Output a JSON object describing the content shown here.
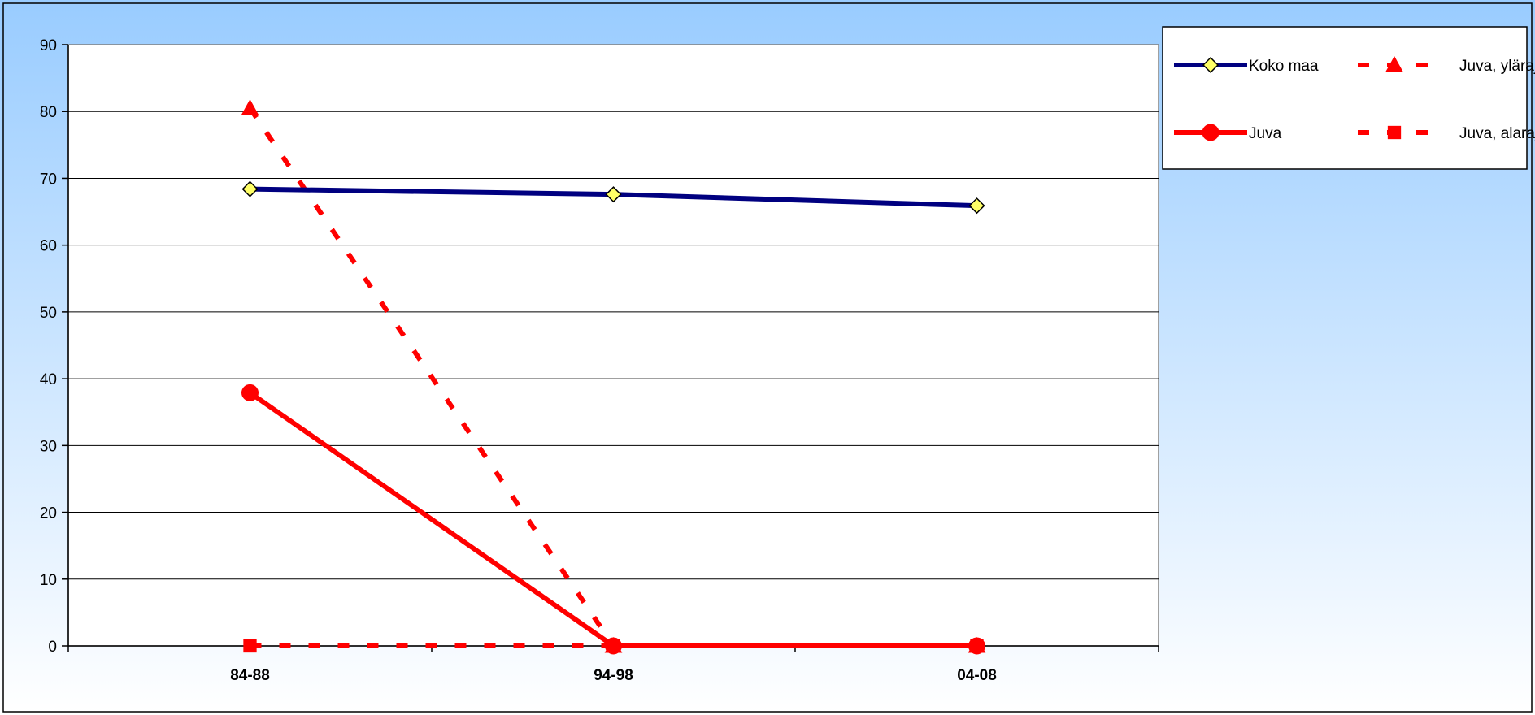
{
  "chart_data": {
    "type": "line",
    "title": "",
    "xlabel": "",
    "ylabel": "",
    "categories": [
      "84-88",
      "94-98",
      "04-08"
    ],
    "ylim": [
      0,
      90
    ],
    "yticks": [
      0,
      10,
      20,
      30,
      40,
      50,
      60,
      70,
      80,
      90
    ],
    "grid": true,
    "legend_position": "top-right",
    "series": [
      {
        "name": "Koko maa",
        "values": [
          68.4,
          67.6,
          65.9
        ],
        "color": "#000080",
        "marker": "diamond",
        "marker_fill": "#ffff66",
        "line_style": "solid"
      },
      {
        "name": "Juva",
        "values": [
          37.9,
          0,
          0
        ],
        "color": "#ff0000",
        "marker": "circle",
        "marker_fill": "#ff0000",
        "line_style": "solid"
      },
      {
        "name": "Juva, yläraja",
        "values": [
          80.5,
          0,
          0
        ],
        "color": "#ff0000",
        "marker": "triangle",
        "marker_fill": "#ff0000",
        "line_style": "dashed"
      },
      {
        "name": "Juva, alaraja",
        "values": [
          0,
          0,
          0
        ],
        "color": "#ff0000",
        "marker": "square",
        "marker_fill": "#ff0000",
        "line_style": "dashed"
      }
    ]
  }
}
